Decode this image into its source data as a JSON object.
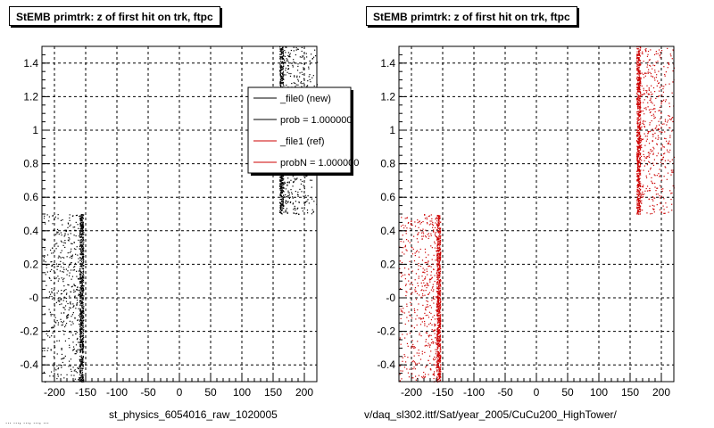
{
  "panels": [
    {
      "title": "StEMB primtrk: z of first hit on trk, ftpc",
      "xaxis_title": "st_physics_6054016_raw_1020005",
      "legend": {
        "entries": [
          {
            "label": "_file0 (new)",
            "color": "#000000"
          },
          {
            "label": "prob = 1.000000",
            "color": "#000000"
          },
          {
            "label": "_file1 (ref)",
            "color": "#cc0000"
          },
          {
            "label": "probN = 1.000000",
            "color": "#cc0000"
          }
        ]
      }
    },
    {
      "title": "StEMB primtrk: z of first hit on trk, ftpc",
      "xaxis_title": "v/daq_sl302.ittf/Sat/year_2005/CuCu200_HighTower/"
    }
  ],
  "footer_text": "... ..., ..., ..., ...",
  "chart_data": [
    {
      "type": "scatter",
      "title": "StEMB primtrk: z of first hit on trk, ftpc",
      "xlabel": "st_physics_6054016_raw_1020005",
      "ylabel": "",
      "xlim": [
        -220,
        220
      ],
      "ylim": [
        -0.5,
        1.5
      ],
      "xticks": [
        -200,
        -150,
        -100,
        -50,
        0,
        50,
        100,
        150,
        200
      ],
      "xtick_labels": [
        "-200",
        "-150",
        "-100",
        "-50",
        "0",
        "50",
        "100",
        "150",
        "200"
      ],
      "yticks": [
        -0.4,
        -0.2,
        0,
        0.2,
        0.4,
        0.6,
        0.8,
        1,
        1.2,
        1.4
      ],
      "ytick_labels": [
        "-0.4",
        "-0.2",
        "-0",
        "0.2",
        "0.4",
        "0.6",
        "0.8",
        "1",
        "1.2",
        "1.4"
      ],
      "grid": true,
      "legend_position": "top-right",
      "series": [
        {
          "name": "_file0 (new)",
          "color": "#000000",
          "clusters": [
            {
              "x_range": [
                -220,
                -160
              ],
              "y_range": [
                -0.5,
                0.5
              ]
            },
            {
              "x_range": [
                -160,
                -154
              ],
              "y_range": [
                -0.5,
                0.5
              ],
              "dense": true
            },
            {
              "x_range": [
                160,
                166
              ],
              "y_range": [
                0.5,
                1.5
              ],
              "dense": true
            },
            {
              "x_range": [
                166,
                220
              ],
              "y_range": [
                0.5,
                1.5
              ]
            }
          ]
        }
      ]
    },
    {
      "type": "scatter",
      "title": "StEMB primtrk: z of first hit on trk, ftpc",
      "xlabel": "v/daq_sl302.ittf/Sat/year_2005/CuCu200_HighTower/",
      "ylabel": "",
      "xlim": [
        -220,
        220
      ],
      "ylim": [
        -0.5,
        1.5
      ],
      "xticks": [
        -200,
        -150,
        -100,
        -50,
        0,
        50,
        100,
        150,
        200
      ],
      "xtick_labels": [
        "-200",
        "-150",
        "-100",
        "-50",
        "0",
        "50",
        "100",
        "150",
        "200"
      ],
      "yticks": [
        -0.4,
        -0.2,
        0,
        0.2,
        0.4,
        0.6,
        0.8,
        1,
        1.2,
        1.4
      ],
      "ytick_labels": [
        "-0.4",
        "-0.2",
        "-0",
        "0.2",
        "0.4",
        "0.6",
        "0.8",
        "1",
        "1.2",
        "1.4"
      ],
      "grid": true,
      "series": [
        {
          "name": "_file1 (ref)",
          "color": "#cc0000",
          "clusters": [
            {
              "x_range": [
                -220,
                -160
              ],
              "y_range": [
                -0.5,
                0.5
              ]
            },
            {
              "x_range": [
                -160,
                -154
              ],
              "y_range": [
                -0.5,
                0.5
              ],
              "dense": true
            },
            {
              "x_range": [
                160,
                166
              ],
              "y_range": [
                0.5,
                1.5
              ],
              "dense": true
            },
            {
              "x_range": [
                166,
                220
              ],
              "y_range": [
                0.5,
                1.5
              ]
            }
          ]
        }
      ]
    }
  ]
}
